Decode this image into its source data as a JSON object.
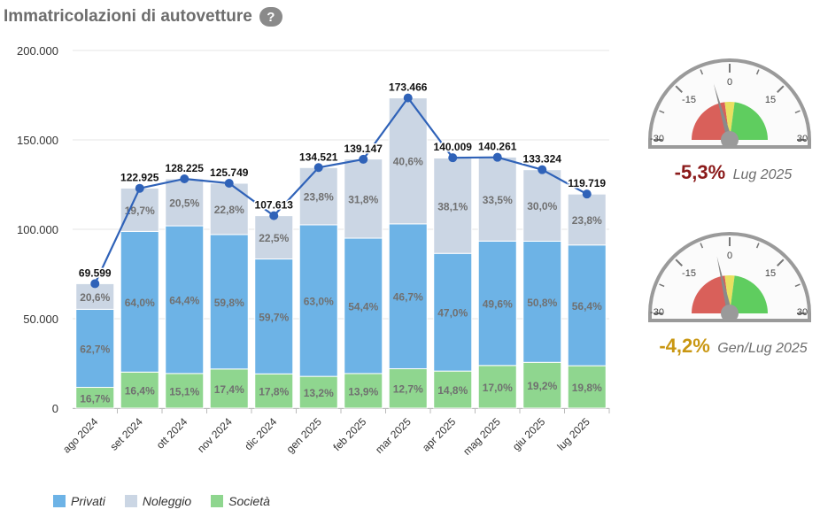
{
  "header": {
    "title": "Immatricolazioni di autovetture",
    "help": "?"
  },
  "legend": [
    {
      "label": "Privati",
      "color": "#6db3e6"
    },
    {
      "label": "Noleggio",
      "color": "#cbd6e4"
    },
    {
      "label": "Società",
      "color": "#8fd68f"
    }
  ],
  "colors": {
    "line": "#2f62b8",
    "gridline": "#e6e6e6",
    "pct_label": "#707070"
  },
  "chart_data": {
    "type": "bar",
    "stacked": true,
    "categories": [
      "ago 2024",
      "set 2024",
      "ott 2024",
      "nov 2024",
      "dic 2024",
      "gen 2025",
      "feb 2025",
      "mar 2025",
      "apr 2025",
      "mag 2025",
      "giu 2025",
      "lug 2025"
    ],
    "totals": [
      69599,
      122925,
      128225,
      125749,
      107613,
      134521,
      139147,
      173466,
      140009,
      140261,
      133324,
      119719
    ],
    "total_labels": [
      "69.599",
      "122.925",
      "128.225",
      "125.749",
      "107.613",
      "134.521",
      "139.147",
      "173.466",
      "140.009",
      "140.261",
      "133.324",
      "119.719"
    ],
    "series": [
      {
        "name": "Società",
        "color": "#8fd68f",
        "percent_labels": [
          "16,7%",
          "16,4%",
          "15,1%",
          "17,4%",
          "17,8%",
          "13,2%",
          "13,9%",
          "12,7%",
          "14,8%",
          "17,0%",
          "19,2%",
          "19,8%"
        ]
      },
      {
        "name": "Privati",
        "color": "#6db3e6",
        "percent_labels": [
          "62,7%",
          "64,0%",
          "64,4%",
          "59,8%",
          "59,7%",
          "63,0%",
          "54,4%",
          "46,7%",
          "47,0%",
          "49,6%",
          "50,8%",
          "56,4%"
        ]
      },
      {
        "name": "Noleggio",
        "color": "#cbd6e4",
        "percent_labels": [
          "20,6%",
          "19,7%",
          "20,5%",
          "22,8%",
          "22,5%",
          "23,8%",
          "31,8%",
          "40,6%",
          "38,1%",
          "33,5%",
          "30,0%",
          "23,8%"
        ]
      }
    ],
    "ylim": [
      0,
      200000
    ],
    "yticks": [
      0,
      50000,
      100000,
      150000,
      200000
    ],
    "ytick_labels": [
      "0",
      "50.000",
      "100.000",
      "150.000",
      "200.000"
    ],
    "grid": true
  },
  "gauges": [
    {
      "value": -5.3,
      "label": "-5,3%",
      "period": "Lug 2025",
      "color": "#8b1a1a",
      "ticks": [
        "-30",
        "-15",
        "0",
        "15",
        "30"
      ]
    },
    {
      "value": -4.2,
      "label": "-4,2%",
      "period": "Gen/Lug 2025",
      "color": "#c99712",
      "ticks": [
        "-30",
        "-15",
        "0",
        "15",
        "30"
      ]
    }
  ]
}
